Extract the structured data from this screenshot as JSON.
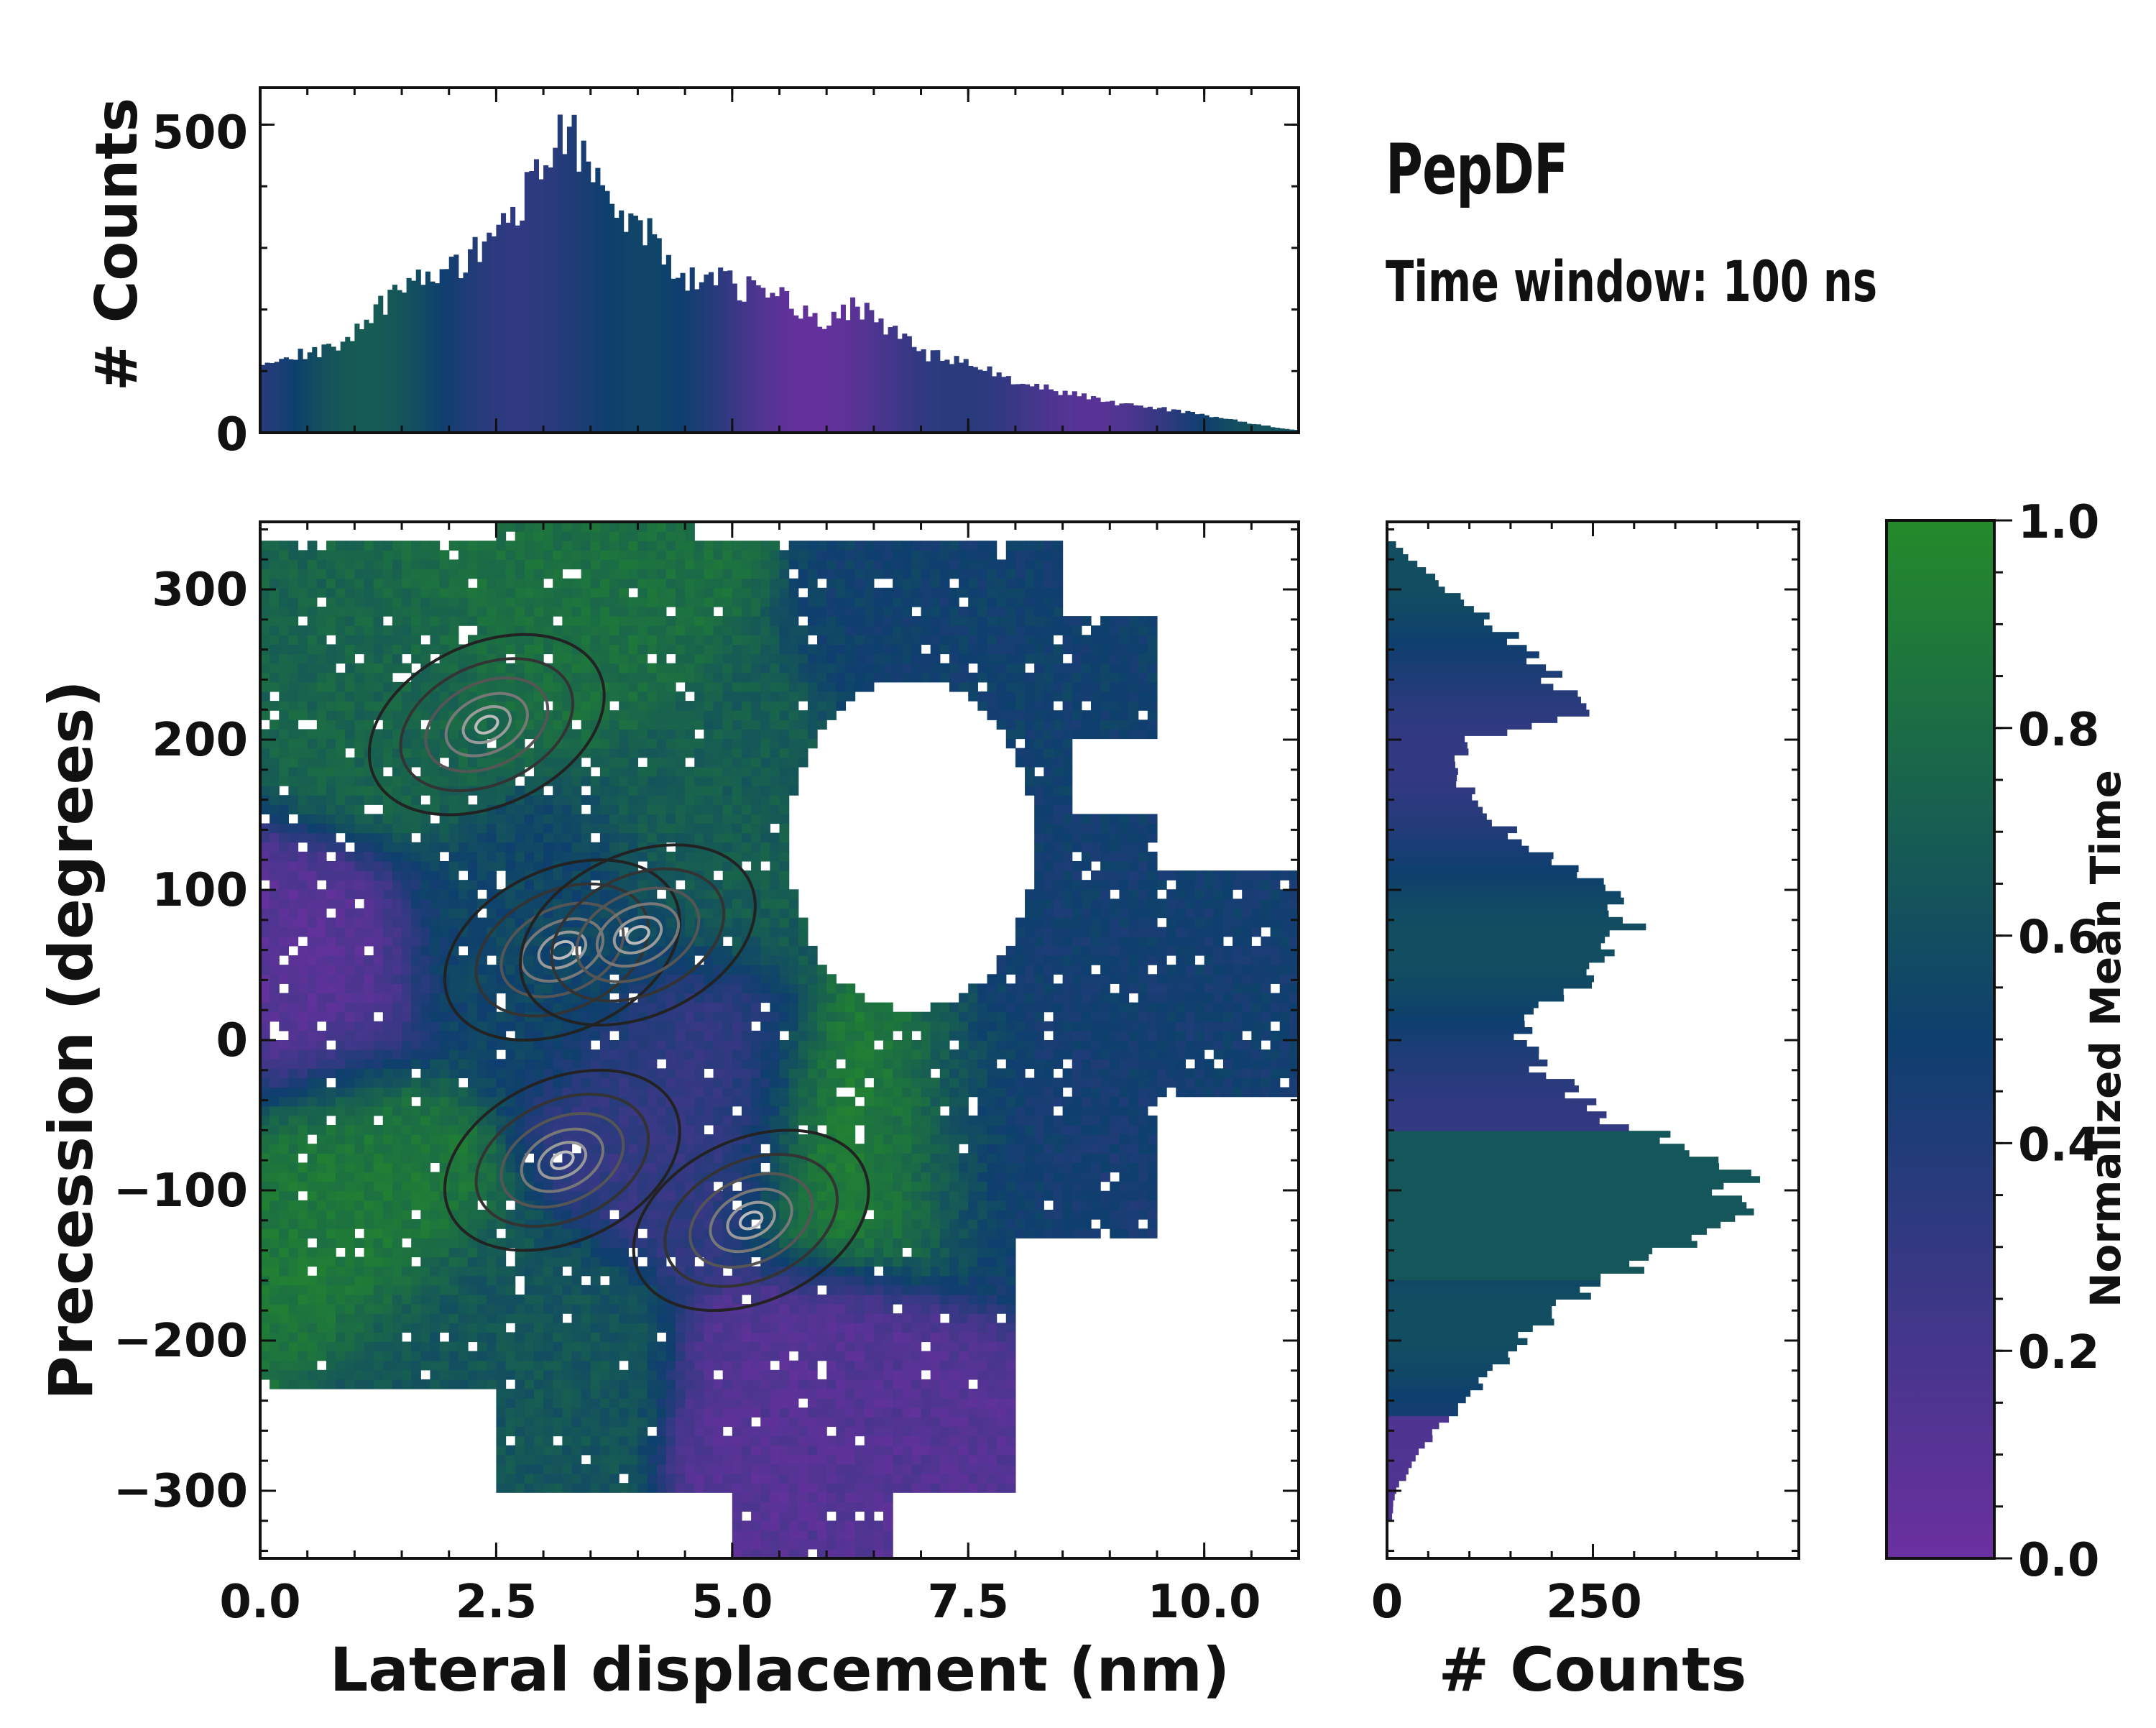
{
  "figure": {
    "title": "PepDF",
    "subtitle": "Time window: 100 ns"
  },
  "colors": {
    "low": "#6b30a0",
    "mid": "#0e3f6e",
    "high": "#248a2a"
  },
  "chart_data": [
    {
      "type": "bar",
      "name": "top-histogram",
      "xlabel": "",
      "ylabel": "# Counts",
      "xlim": [
        0,
        11
      ],
      "ylim": [
        0,
        560
      ],
      "yticks": [
        "0",
        "500"
      ],
      "bin_centers": [
        0.25,
        0.75,
        1.25,
        1.75,
        2.25,
        2.75,
        3.0,
        3.25,
        3.5,
        3.75,
        4.0,
        4.5,
        5.0,
        5.5,
        6.0,
        6.3,
        6.6,
        7.0,
        7.5,
        8.0,
        8.5,
        9.0,
        9.5,
        10.0,
        10.5,
        10.9
      ],
      "counts": [
        120,
        135,
        200,
        255,
        285,
        370,
        420,
        500,
        440,
        345,
        340,
        255,
        240,
        220,
        175,
        210,
        180,
        130,
        110,
        85,
        65,
        50,
        40,
        30,
        15,
        5
      ]
    },
    {
      "type": "heatmap",
      "name": "main-2d-histogram",
      "xlabel": "Lateral displacement (nm)",
      "ylabel": "Precession (degrees)",
      "xlim": [
        0,
        11
      ],
      "ylim": [
        -345,
        345
      ],
      "xticks": [
        "0.0",
        "2.5",
        "5.0",
        "7.5",
        "10.0"
      ],
      "yticks": [
        "−300",
        "−200",
        "−100",
        "0",
        "100",
        "200",
        "300"
      ],
      "regions": [
        {
          "x": 0.8,
          "y": -100,
          "value": 0.88
        },
        {
          "x": 1.2,
          "y": 230,
          "value": 0.75
        },
        {
          "x": 3.0,
          "y": 60,
          "value": 0.55
        },
        {
          "x": 3.0,
          "y": 300,
          "value": 0.82
        },
        {
          "x": 2.5,
          "y": -220,
          "value": 0.65
        },
        {
          "x": 4.5,
          "y": -40,
          "value": 0.3
        },
        {
          "x": 5.2,
          "y": 140,
          "value": 0.7
        },
        {
          "x": 6.6,
          "y": -60,
          "value": 0.95
        },
        {
          "x": 6.2,
          "y": -250,
          "value": 0.12
        },
        {
          "x": 7.6,
          "y": 230,
          "value": 0.5
        },
        {
          "x": 9.2,
          "y": 70,
          "value": 0.48
        },
        {
          "x": 7.8,
          "y": -60,
          "value": 0.45
        },
        {
          "x": 0.2,
          "y": 40,
          "value": 0.1
        }
      ],
      "density_peaks": [
        {
          "x": 3.2,
          "y": 60
        },
        {
          "x": 3.2,
          "y": -80
        },
        {
          "x": 5.2,
          "y": -120
        },
        {
          "x": 2.4,
          "y": 210
        },
        {
          "x": 4.0,
          "y": 70
        }
      ]
    },
    {
      "type": "bar",
      "name": "right-histogram",
      "orientation": "horizontal",
      "xlabel": "# Counts",
      "ylabel": "",
      "xlim": [
        0,
        500
      ],
      "ylim": [
        -345,
        345
      ],
      "xticks": [
        "0",
        "250"
      ],
      "bin_centers": [
        330,
        300,
        270,
        250,
        220,
        200,
        180,
        150,
        120,
        100,
        70,
        50,
        30,
        10,
        -10,
        -50,
        -70,
        -100,
        -120,
        -150,
        -180,
        -200,
        -230,
        -260,
        -300,
        -320
      ],
      "counts": [
        10,
        70,
        150,
        190,
        240,
        100,
        80,
        120,
        200,
        270,
        300,
        250,
        220,
        160,
        170,
        260,
        360,
        440,
        400,
        300,
        200,
        170,
        110,
        60,
        10,
        5
      ]
    },
    {
      "type": "colorbar",
      "name": "colorbar",
      "label": "Normalized Mean Time",
      "range": [
        0.0,
        1.0
      ],
      "ticks": [
        "0.0",
        "0.2",
        "0.4",
        "0.6",
        "0.8",
        "1.0"
      ]
    }
  ]
}
